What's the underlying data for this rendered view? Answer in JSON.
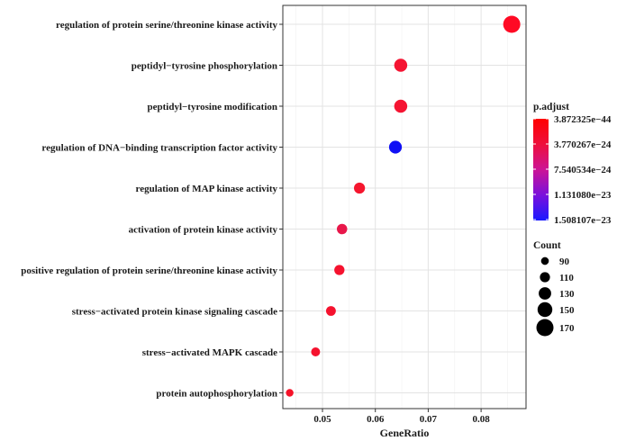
{
  "chart_data": {
    "type": "scatter",
    "xlabel": "GeneRatio",
    "xlim": [
      0.0425,
      0.0885
    ],
    "xticks": [
      0.05,
      0.06,
      0.07,
      0.08
    ],
    "xtick_labels": [
      "0.05",
      "0.06",
      "0.07",
      "0.08"
    ],
    "grid": true,
    "legend_placement": "right",
    "points": [
      {
        "term": "regulation of protein serine/threonine kinase activity",
        "gene_ratio": 0.0858,
        "count": 170,
        "p_adjust": 3.872325e-44,
        "color": "#ff0a24"
      },
      {
        "term": "peptidyl−tyrosine phosphorylation",
        "gene_ratio": 0.0648,
        "count": 135,
        "p_adjust": 1e-28,
        "color": "#f51432"
      },
      {
        "term": "peptidyl−tyrosine modification",
        "gene_ratio": 0.0648,
        "count": 135,
        "p_adjust": 1e-28,
        "color": "#f51432"
      },
      {
        "term": "regulation of DNA−binding transcription factor activity",
        "gene_ratio": 0.0638,
        "count": 133,
        "p_adjust": 1.508107e-23,
        "color": "#1010f5"
      },
      {
        "term": "regulation of MAP kinase activity",
        "gene_ratio": 0.057,
        "count": 118,
        "p_adjust": 1e-27,
        "color": "#f5162e"
      },
      {
        "term": "activation of protein kinase activity",
        "gene_ratio": 0.0537,
        "count": 112,
        "p_adjust": 2e-25,
        "color": "#e8174a"
      },
      {
        "term": "positive regulation of protein serine/threonine kinase activity",
        "gene_ratio": 0.0532,
        "count": 111,
        "p_adjust": 1e-30,
        "color": "#f5122e"
      },
      {
        "term": "stress−activated protein kinase signaling cascade",
        "gene_ratio": 0.0516,
        "count": 107,
        "p_adjust": 1e-30,
        "color": "#f5122e"
      },
      {
        "term": "stress−activated MAPK cascade",
        "gene_ratio": 0.0487,
        "count": 100,
        "p_adjust": 1e-30,
        "color": "#f5122e"
      },
      {
        "term": "protein autophosphorylation",
        "gene_ratio": 0.0438,
        "count": 88,
        "p_adjust": 1e-30,
        "color": "#f51228"
      }
    ],
    "legend_color": {
      "title": "p.adjust",
      "labels": [
        "3.872325e−44",
        "3.770267e−24",
        "7.540534e−24",
        "1.131080e−23",
        "1.508107e−23"
      ],
      "label_values": [
        3.872325e-44,
        3.770267e-24,
        7.540534e-24,
        1.13108e-23,
        1.508107e-23
      ],
      "gradient": [
        "#ff0000",
        "#ee0f3c",
        "#cc1496",
        "#7a10dc",
        "#1a1aff"
      ]
    },
    "legend_size": {
      "title": "Count",
      "values": [
        90,
        110,
        130,
        150,
        170
      ],
      "labels": [
        "90",
        "110",
        "130",
        "150",
        "170"
      ]
    }
  }
}
